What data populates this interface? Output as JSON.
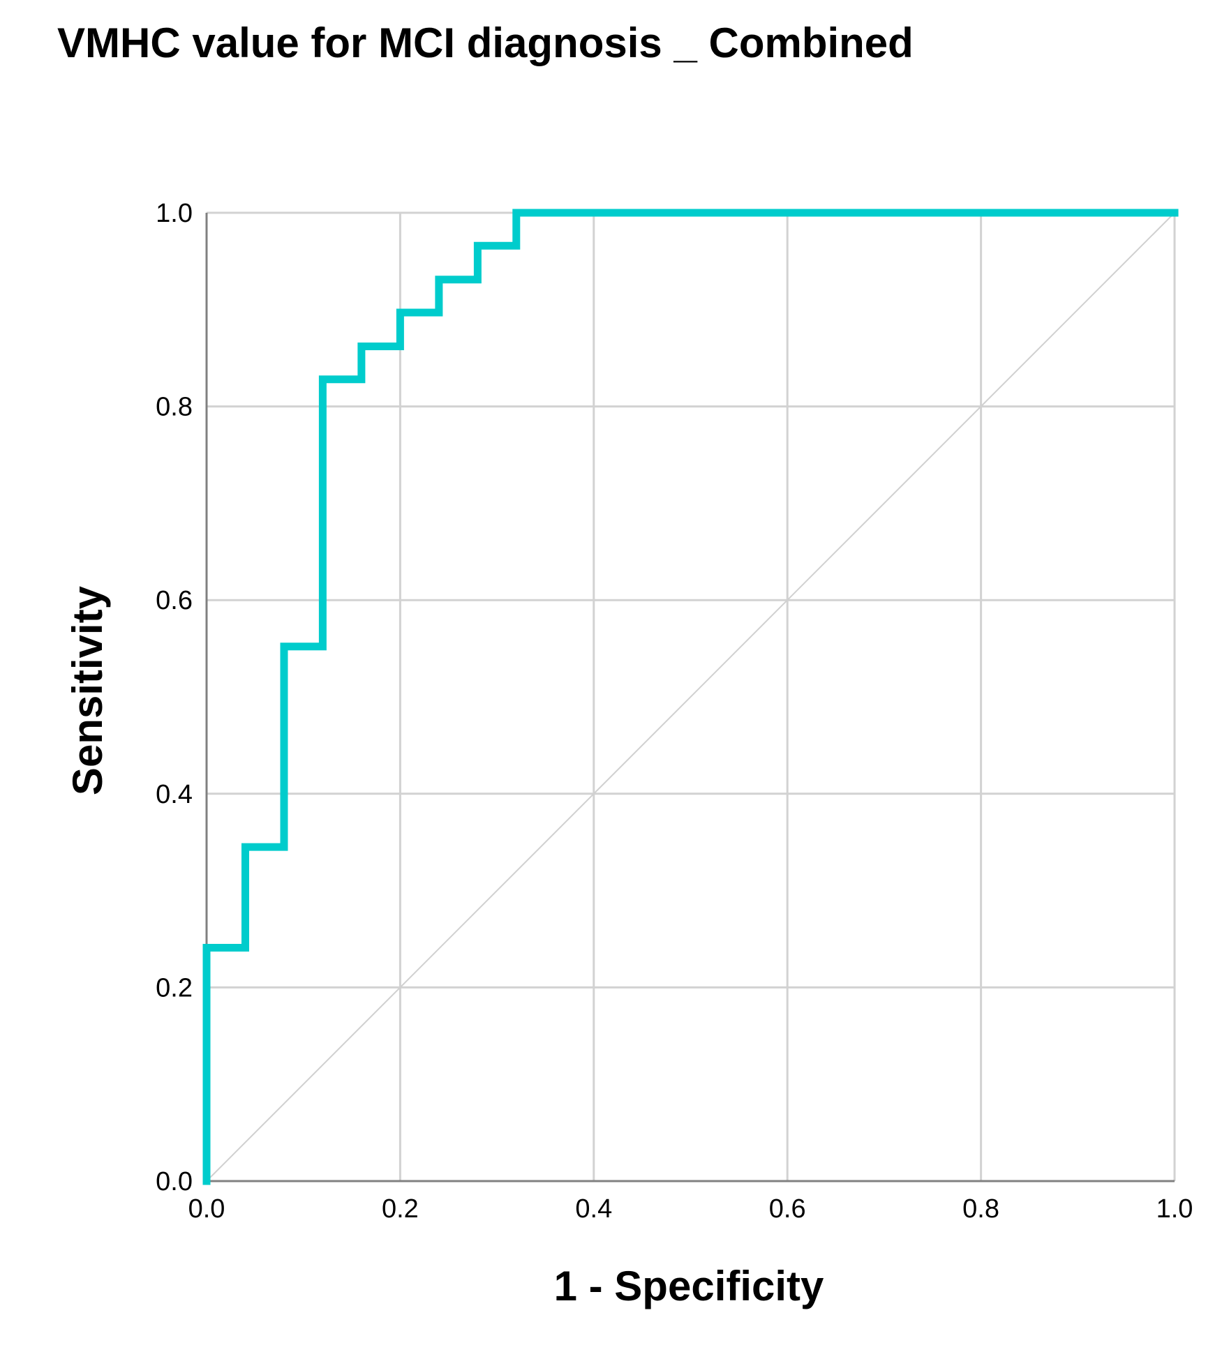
{
  "chart_data": {
    "type": "line",
    "title": "VMHC value for MCI diagnosis _ Combined",
    "xlabel": "1 - Specificity",
    "ylabel": "Sensitivity",
    "xlim": [
      0.0,
      1.0
    ],
    "ylim": [
      0.0,
      1.0
    ],
    "x_ticks": [
      "0.0",
      "0.2",
      "0.4",
      "0.6",
      "0.8",
      "1.0"
    ],
    "y_ticks": [
      "0.0",
      "0.2",
      "0.4",
      "0.6",
      "0.8",
      "1.0"
    ],
    "grid": true,
    "series": [
      {
        "color": "#00cccc",
        "x": [
          0.0,
          0.0,
          0.04,
          0.04,
          0.08,
          0.08,
          0.12,
          0.12,
          0.16,
          0.16,
          0.2,
          0.2,
          0.24,
          0.24,
          0.28,
          0.28,
          0.32,
          0.32,
          1.0
        ],
        "y": [
          0.0,
          0.241,
          0.241,
          0.345,
          0.345,
          0.552,
          0.552,
          0.828,
          0.828,
          0.862,
          0.862,
          0.897,
          0.897,
          0.931,
          0.931,
          0.966,
          0.966,
          1.0,
          1.0
        ]
      },
      {
        "color": "#d0d0d0",
        "x": [
          0.0,
          1.0
        ],
        "y": [
          0.0,
          1.0
        ]
      }
    ]
  }
}
